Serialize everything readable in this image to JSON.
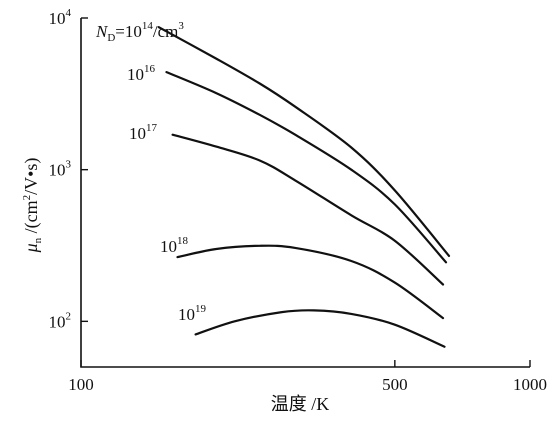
{
  "chart_data": {
    "type": "line",
    "x_scale": "log",
    "y_scale": "log",
    "xlim": [
      100,
      1000
    ],
    "ylim": [
      50,
      10000
    ],
    "xlabel": "温度 /K",
    "ylabel": {
      "mu": "μ",
      "sub": "n",
      "rest_open": " /(cm",
      "sup": "2",
      "rest_close": "/V•s)"
    },
    "x_ticks": [
      {
        "value": 100,
        "label": "100"
      },
      {
        "value": 500,
        "label": "500"
      },
      {
        "value": 1000,
        "label": "1000"
      }
    ],
    "y_ticks": [
      {
        "value": 100,
        "base": "10",
        "exp": "2"
      },
      {
        "value": 1000,
        "base": "10",
        "exp": "3"
      },
      {
        "value": 10000,
        "base": "10",
        "exp": "4"
      }
    ],
    "grid": false,
    "series": [
      {
        "label_prefix": "N",
        "label_sub": "D",
        "label_mid": "=10",
        "label_sup": "14",
        "label_suffix": "/cm",
        "label_suffix_sup": "3",
        "x": [
          149,
          200,
          250,
          300,
          400,
          500,
          660
        ],
        "y": [
          8700,
          5400,
          3700,
          2600,
          1400,
          730,
          270
        ]
      },
      {
        "label_base": "10",
        "label_sup": "16",
        "x": [
          155,
          200,
          250,
          300,
          400,
          500,
          650
        ],
        "y": [
          4400,
          3200,
          2300,
          1700,
          1000,
          590,
          245
        ]
      },
      {
        "label_base": "10",
        "label_sup": "17",
        "x": [
          160,
          200,
          250,
          300,
          400,
          500,
          640
        ],
        "y": [
          1700,
          1420,
          1150,
          850,
          500,
          340,
          175
        ]
      },
      {
        "label_base": "10",
        "label_sup": "18",
        "x": [
          164,
          200,
          250,
          300,
          400,
          500,
          640
        ],
        "y": [
          265,
          300,
          315,
          305,
          250,
          180,
          105
        ]
      },
      {
        "label_base": "10",
        "label_sup": "19",
        "x": [
          180,
          220,
          280,
          330,
          400,
          500,
          645
        ],
        "y": [
          82,
          100,
          115,
          118,
          112,
          95,
          68
        ]
      }
    ]
  }
}
